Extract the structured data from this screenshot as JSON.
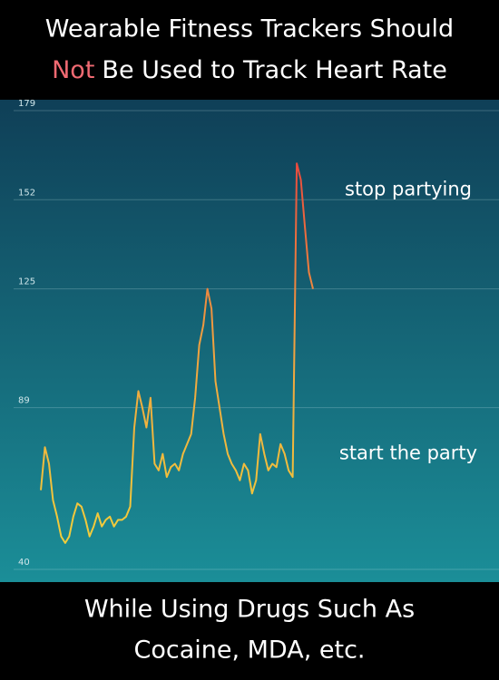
{
  "header": {
    "line1": "Wearable Fitness Trackers Should",
    "highlight": "Not",
    "line2": "Be Used to Track Heart Rate"
  },
  "footer": {
    "lines": [
      "While Using Drugs Such As",
      "Cocaine, MDA, etc."
    ]
  },
  "chart_data": {
    "type": "line",
    "values": [
      64,
      77,
      72,
      61,
      56,
      50,
      48,
      50,
      56,
      60,
      59,
      55,
      50,
      53,
      57,
      53,
      55,
      56,
      53,
      55,
      55,
      56,
      59,
      83,
      94,
      89,
      83,
      92,
      72,
      70,
      75,
      68,
      71,
      72,
      70,
      75,
      78,
      81,
      92,
      108,
      114,
      125,
      119,
      97,
      89,
      81,
      75,
      72,
      70,
      67,
      72,
      70,
      63,
      67,
      81,
      75,
      70,
      72,
      71,
      78,
      75,
      70,
      68,
      163,
      158,
      144,
      130,
      125
    ],
    "ylim": [
      40,
      179
    ],
    "yticks": [
      40,
      89,
      125,
      152,
      179
    ],
    "grid": true,
    "color_stops": [
      "#f2d43a",
      "#f0a040",
      "#e8303c"
    ],
    "annotations": [
      {
        "text": "stop partying",
        "value": 155
      },
      {
        "text": "start the party",
        "value": 75
      }
    ]
  }
}
